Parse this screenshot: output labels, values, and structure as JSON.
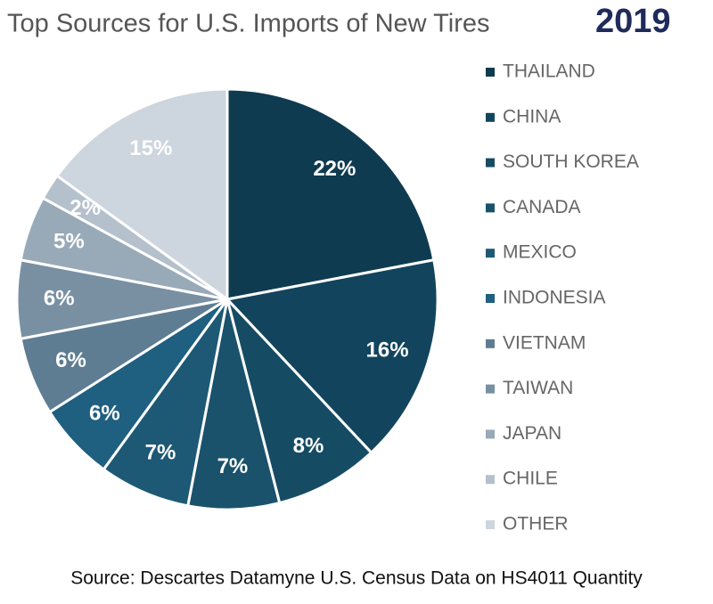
{
  "chart_data": {
    "type": "pie",
    "title": "Top Sources for U.S. Imports of New Tires",
    "subtitle": "2019",
    "source": "Source: Descartes Datamyne U.S. Census Data on HS4011 Quantity",
    "categories": [
      "THAILAND",
      "CHINA",
      "SOUTH KOREA",
      "CANADA",
      "MEXICO",
      "INDONESIA",
      "VIETNAM",
      "TAIWAN",
      "JAPAN",
      "CHILE",
      "OTHER"
    ],
    "values": [
      22,
      16,
      8,
      7,
      7,
      6,
      6,
      6,
      5,
      2,
      15
    ],
    "value_labels": [
      "22%",
      "16%",
      "8%",
      "7%",
      "7%",
      "6%",
      "6%",
      "6%",
      "5%",
      "2%",
      "15%"
    ],
    "colors": [
      "#0f3b50",
      "#12455d",
      "#164c63",
      "#1a526c",
      "#1d5975",
      "#1f5f80",
      "#5e7d92",
      "#7990a3",
      "#98a9b8",
      "#b4c0cc",
      "#cdd5de"
    ]
  }
}
